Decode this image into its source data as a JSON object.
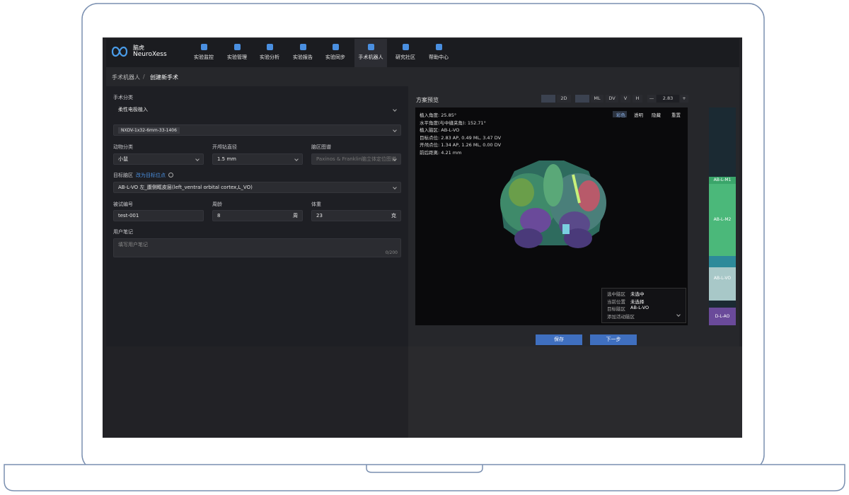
{
  "nav": {
    "logo_cn": "脑虎",
    "logo_en": "NeuroXess",
    "items": [
      "实验监控",
      "实验管理",
      "实验分析",
      "实验报告",
      "实验同步",
      "手术机器人",
      "研究社区",
      "帮助中心"
    ]
  },
  "breadcrumb": [
    "手术机器人",
    "/",
    "创建新手术"
  ],
  "form": {
    "surgery_type": {
      "label": "手术分类",
      "value": "柔性电极植入"
    },
    "electrode": {
      "value": "NXDV-1x32-6mm-33-1406"
    },
    "animal": {
      "label": "动物分类",
      "value": "小鼠"
    },
    "drill": {
      "label": "开颅钻直径",
      "value": "1.5 mm"
    },
    "atlas": {
      "label": "脑区图谱",
      "value": "Paxinos & Franklin脑立体定位图谱"
    },
    "target": {
      "label": "目标脑区",
      "link": "改为目标位点",
      "value": "AB-L-VO 左_腹侧眶皮层(left_ventral orbital cortex,L_VO)"
    },
    "subject": {
      "label": "被试编号",
      "value": "test-001"
    },
    "age": {
      "label": "周龄",
      "value": "8",
      "unit": "周"
    },
    "weight": {
      "label": "体重",
      "value": "23",
      "unit": "克"
    },
    "notes": {
      "label": "用户笔记",
      "placeholder": "填写用户笔记",
      "counter": "0/200"
    }
  },
  "preview": {
    "title": "方案预览",
    "toolbar": [
      "2D",
      "ML",
      "DV",
      "V",
      "H",
      "—",
      "2.83",
      "+"
    ],
    "view_buttons": [
      "彩色",
      "透明",
      "隐藏",
      "重置"
    ],
    "info": [
      "植入角度: 25.85°",
      "水平角度(与中缝夹角): 152.71°",
      "植入脑区: AB-L-VO",
      "目标点位: 2.83 AP, 0.49 ML, 3.47 DV",
      "开颅点位: 1.34 AP, 1.26 ML, 0.00 DV",
      "前后距离: 4.21 mm"
    ],
    "legend": [
      [
        "选中脑区",
        "未选中"
      ],
      [
        "当前位置",
        "未选择"
      ],
      [
        "目标脑区",
        "AB-L-VO"
      ],
      [
        "添加活动脑区"
      ]
    ],
    "regions": [
      "AB-L-M1",
      "AB-L-M2",
      "AB-L-VO",
      "D-L-AO"
    ]
  },
  "actions": [
    "保存",
    "下一步"
  ]
}
